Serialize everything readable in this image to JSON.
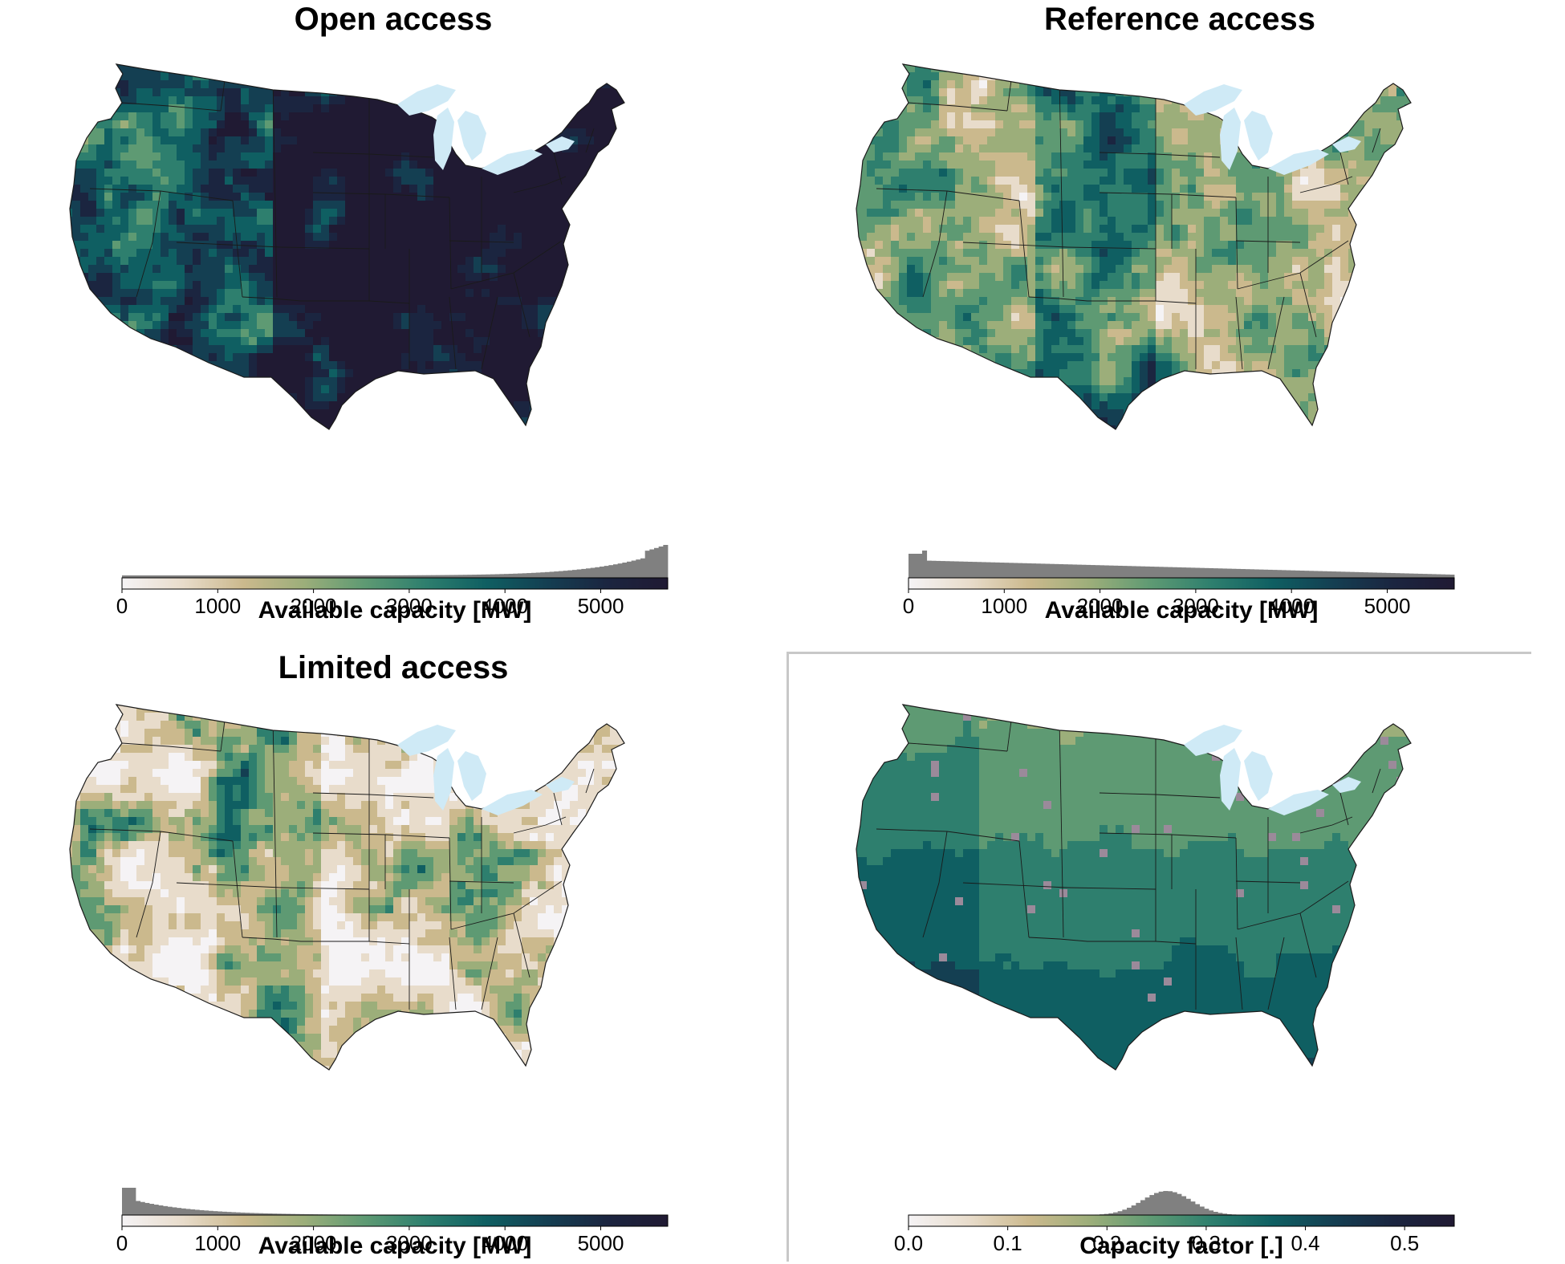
{
  "panels": [
    {
      "id": "open",
      "title": "Open access",
      "colorbar_label": "Available capacity [MW]",
      "ticks": [
        0,
        1000,
        2000,
        3000,
        4000,
        5000
      ],
      "vmin": 0,
      "vmax": 5700,
      "intensity": 0.92,
      "histogram_shape": "right-skewed-peak-at-max"
    },
    {
      "id": "reference",
      "title": "Reference access",
      "colorbar_label": "Available capacity [MW]",
      "ticks": [
        0,
        1000,
        2000,
        3000,
        4000,
        5000
      ],
      "vmin": 0,
      "vmax": 5700,
      "intensity": 0.42,
      "histogram_shape": "peak-near-zero-long-tail"
    },
    {
      "id": "limited",
      "title": "Limited access",
      "colorbar_label": "Available capacity [MW]",
      "ticks": [
        0,
        1000,
        2000,
        3000,
        4000,
        5000
      ],
      "vmin": 0,
      "vmax": 5700,
      "intensity": 0.18,
      "histogram_shape": "sharp-peak-at-zero"
    },
    {
      "id": "cf",
      "title": "",
      "colorbar_label": "Capacity factor [.]",
      "ticks": [
        "0.0",
        "0.1",
        "0.2",
        "0.3",
        "0.4",
        "0.5"
      ],
      "vmin": 0,
      "vmax": 0.55,
      "intensity": 0.5,
      "histogram_shape": "bell-around-0.26"
    }
  ],
  "colormap": [
    "#f5f3f5",
    "#e8dccb",
    "#cbb98d",
    "#9cae7a",
    "#5e9a73",
    "#2e7f6e",
    "#0f5f62",
    "#143f52",
    "#1b2540",
    "#201a33"
  ],
  "lake_color": "#cfeaf6",
  "histogram_color": "#808080"
}
